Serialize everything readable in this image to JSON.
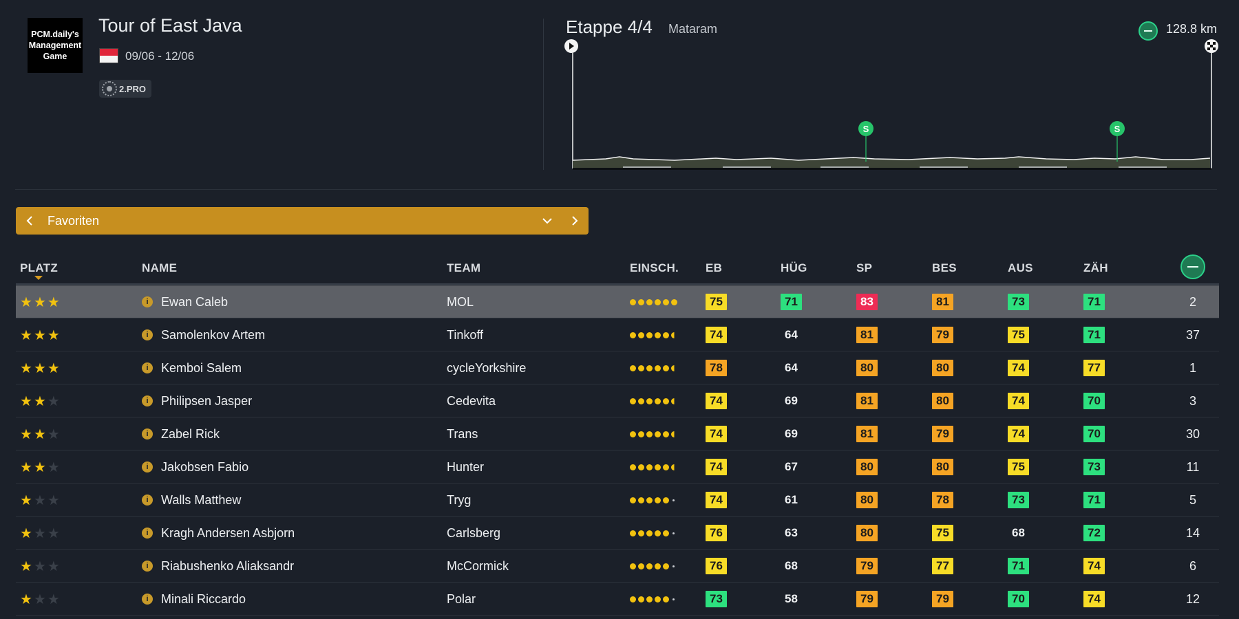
{
  "race": {
    "logo_text": "PCM.daily's\nManagement\nGame",
    "title": "Tour of East Java",
    "dates": "09/06 - 12/06",
    "flag": "indonesia-flag",
    "class_label": "2.PRO"
  },
  "stage": {
    "label": "Etappe 4/4",
    "city": "Mataram",
    "distance": "128.8 km",
    "sprint_marker": "S",
    "colors": {
      "sprint": "#27c46a",
      "terrain": "#3d4437",
      "line": "#f2f2f2"
    }
  },
  "selector": {
    "label": "Favoriten"
  },
  "table": {
    "headers": {
      "platz": "PLATZ",
      "name": "NAME",
      "team": "TEAM",
      "einsch": "EINSCH.",
      "eb": "EB",
      "hug": "HÜG",
      "sp": "SP",
      "bes": "BES",
      "aus": "AUS",
      "zah": "ZÄH"
    },
    "sorted_by": "PLATZ",
    "colors": {
      "yellow": "#f7dc27",
      "orange": "#f5a424",
      "green": "#2de07f",
      "red": "#ee2c55"
    },
    "rows": [
      {
        "stars": 3,
        "info_icon": "i",
        "name": "Ewan Caleb",
        "team": "MOL",
        "rating_dots": 6.0,
        "eb": {
          "v": "75",
          "c": "yellow"
        },
        "hug": {
          "v": "71",
          "c": "green"
        },
        "sp": {
          "v": "83",
          "c": "red"
        },
        "bes": {
          "v": "81",
          "c": "orange"
        },
        "aus": {
          "v": "73",
          "c": "green"
        },
        "zah": {
          "v": "71",
          "c": "green"
        },
        "last": "2",
        "selected": true
      },
      {
        "stars": 3,
        "info_icon": "i",
        "name": "Samolenkov Artem",
        "team": "Tinkoff",
        "rating_dots": 5.5,
        "eb": {
          "v": "74",
          "c": "yellow"
        },
        "hug": {
          "v": "64",
          "c": "none"
        },
        "sp": {
          "v": "81",
          "c": "orange"
        },
        "bes": {
          "v": "79",
          "c": "orange"
        },
        "aus": {
          "v": "75",
          "c": "yellow"
        },
        "zah": {
          "v": "71",
          "c": "green"
        },
        "last": "37"
      },
      {
        "stars": 3,
        "info_icon": "i",
        "name": "Kemboi Salem",
        "team": "cycleYorkshire",
        "rating_dots": 5.5,
        "eb": {
          "v": "78",
          "c": "orange"
        },
        "hug": {
          "v": "64",
          "c": "none"
        },
        "sp": {
          "v": "80",
          "c": "orange"
        },
        "bes": {
          "v": "80",
          "c": "orange"
        },
        "aus": {
          "v": "74",
          "c": "yellow"
        },
        "zah": {
          "v": "77",
          "c": "yellow"
        },
        "last": "1"
      },
      {
        "stars": 2,
        "info_icon": "i",
        "name": "Philipsen Jasper",
        "team": "Cedevita",
        "rating_dots": 5.5,
        "eb": {
          "v": "74",
          "c": "yellow"
        },
        "hug": {
          "v": "69",
          "c": "none"
        },
        "sp": {
          "v": "81",
          "c": "orange"
        },
        "bes": {
          "v": "80",
          "c": "orange"
        },
        "aus": {
          "v": "74",
          "c": "yellow"
        },
        "zah": {
          "v": "70",
          "c": "green"
        },
        "last": "3"
      },
      {
        "stars": 2,
        "info_icon": "i",
        "name": "Zabel Rick",
        "team": "Trans",
        "rating_dots": 5.5,
        "eb": {
          "v": "74",
          "c": "yellow"
        },
        "hug": {
          "v": "69",
          "c": "none"
        },
        "sp": {
          "v": "81",
          "c": "orange"
        },
        "bes": {
          "v": "79",
          "c": "orange"
        },
        "aus": {
          "v": "74",
          "c": "yellow"
        },
        "zah": {
          "v": "70",
          "c": "green"
        },
        "last": "30"
      },
      {
        "stars": 2,
        "info_icon": "i",
        "name": "Jakobsen Fabio",
        "team": "Hunter",
        "rating_dots": 5.5,
        "eb": {
          "v": "74",
          "c": "yellow"
        },
        "hug": {
          "v": "67",
          "c": "none"
        },
        "sp": {
          "v": "80",
          "c": "orange"
        },
        "bes": {
          "v": "80",
          "c": "orange"
        },
        "aus": {
          "v": "75",
          "c": "yellow"
        },
        "zah": {
          "v": "73",
          "c": "green"
        },
        "last": "11"
      },
      {
        "stars": 1,
        "info_icon": "i",
        "name": "Walls Matthew",
        "team": "Tryg",
        "rating_dots": 5.0,
        "eb": {
          "v": "74",
          "c": "yellow"
        },
        "hug": {
          "v": "61",
          "c": "none"
        },
        "sp": {
          "v": "80",
          "c": "orange"
        },
        "bes": {
          "v": "78",
          "c": "orange"
        },
        "aus": {
          "v": "73",
          "c": "green"
        },
        "zah": {
          "v": "71",
          "c": "green"
        },
        "last": "5"
      },
      {
        "stars": 1,
        "info_icon": "i",
        "name": "Kragh Andersen Asbjorn",
        "team": "Carlsberg",
        "rating_dots": 5.0,
        "eb": {
          "v": "76",
          "c": "yellow"
        },
        "hug": {
          "v": "63",
          "c": "none"
        },
        "sp": {
          "v": "80",
          "c": "orange"
        },
        "bes": {
          "v": "75",
          "c": "yellow"
        },
        "aus": {
          "v": "68",
          "c": "none"
        },
        "zah": {
          "v": "72",
          "c": "green"
        },
        "last": "14"
      },
      {
        "stars": 1,
        "info_icon": "i",
        "name": "Riabushenko Aliaksandr",
        "team": "McCormick",
        "rating_dots": 5.0,
        "eb": {
          "v": "76",
          "c": "yellow"
        },
        "hug": {
          "v": "68",
          "c": "none"
        },
        "sp": {
          "v": "79",
          "c": "orange"
        },
        "bes": {
          "v": "77",
          "c": "yellow"
        },
        "aus": {
          "v": "71",
          "c": "green"
        },
        "zah": {
          "v": "74",
          "c": "yellow"
        },
        "last": "6"
      },
      {
        "stars": 1,
        "info_icon": "i",
        "name": "Minali Riccardo",
        "team": "Polar",
        "rating_dots": 5.0,
        "eb": {
          "v": "73",
          "c": "green"
        },
        "hug": {
          "v": "58",
          "c": "none"
        },
        "sp": {
          "v": "79",
          "c": "orange"
        },
        "bes": {
          "v": "79",
          "c": "orange"
        },
        "aus": {
          "v": "70",
          "c": "green"
        },
        "zah": {
          "v": "74",
          "c": "yellow"
        },
        "last": "12"
      }
    ]
  }
}
